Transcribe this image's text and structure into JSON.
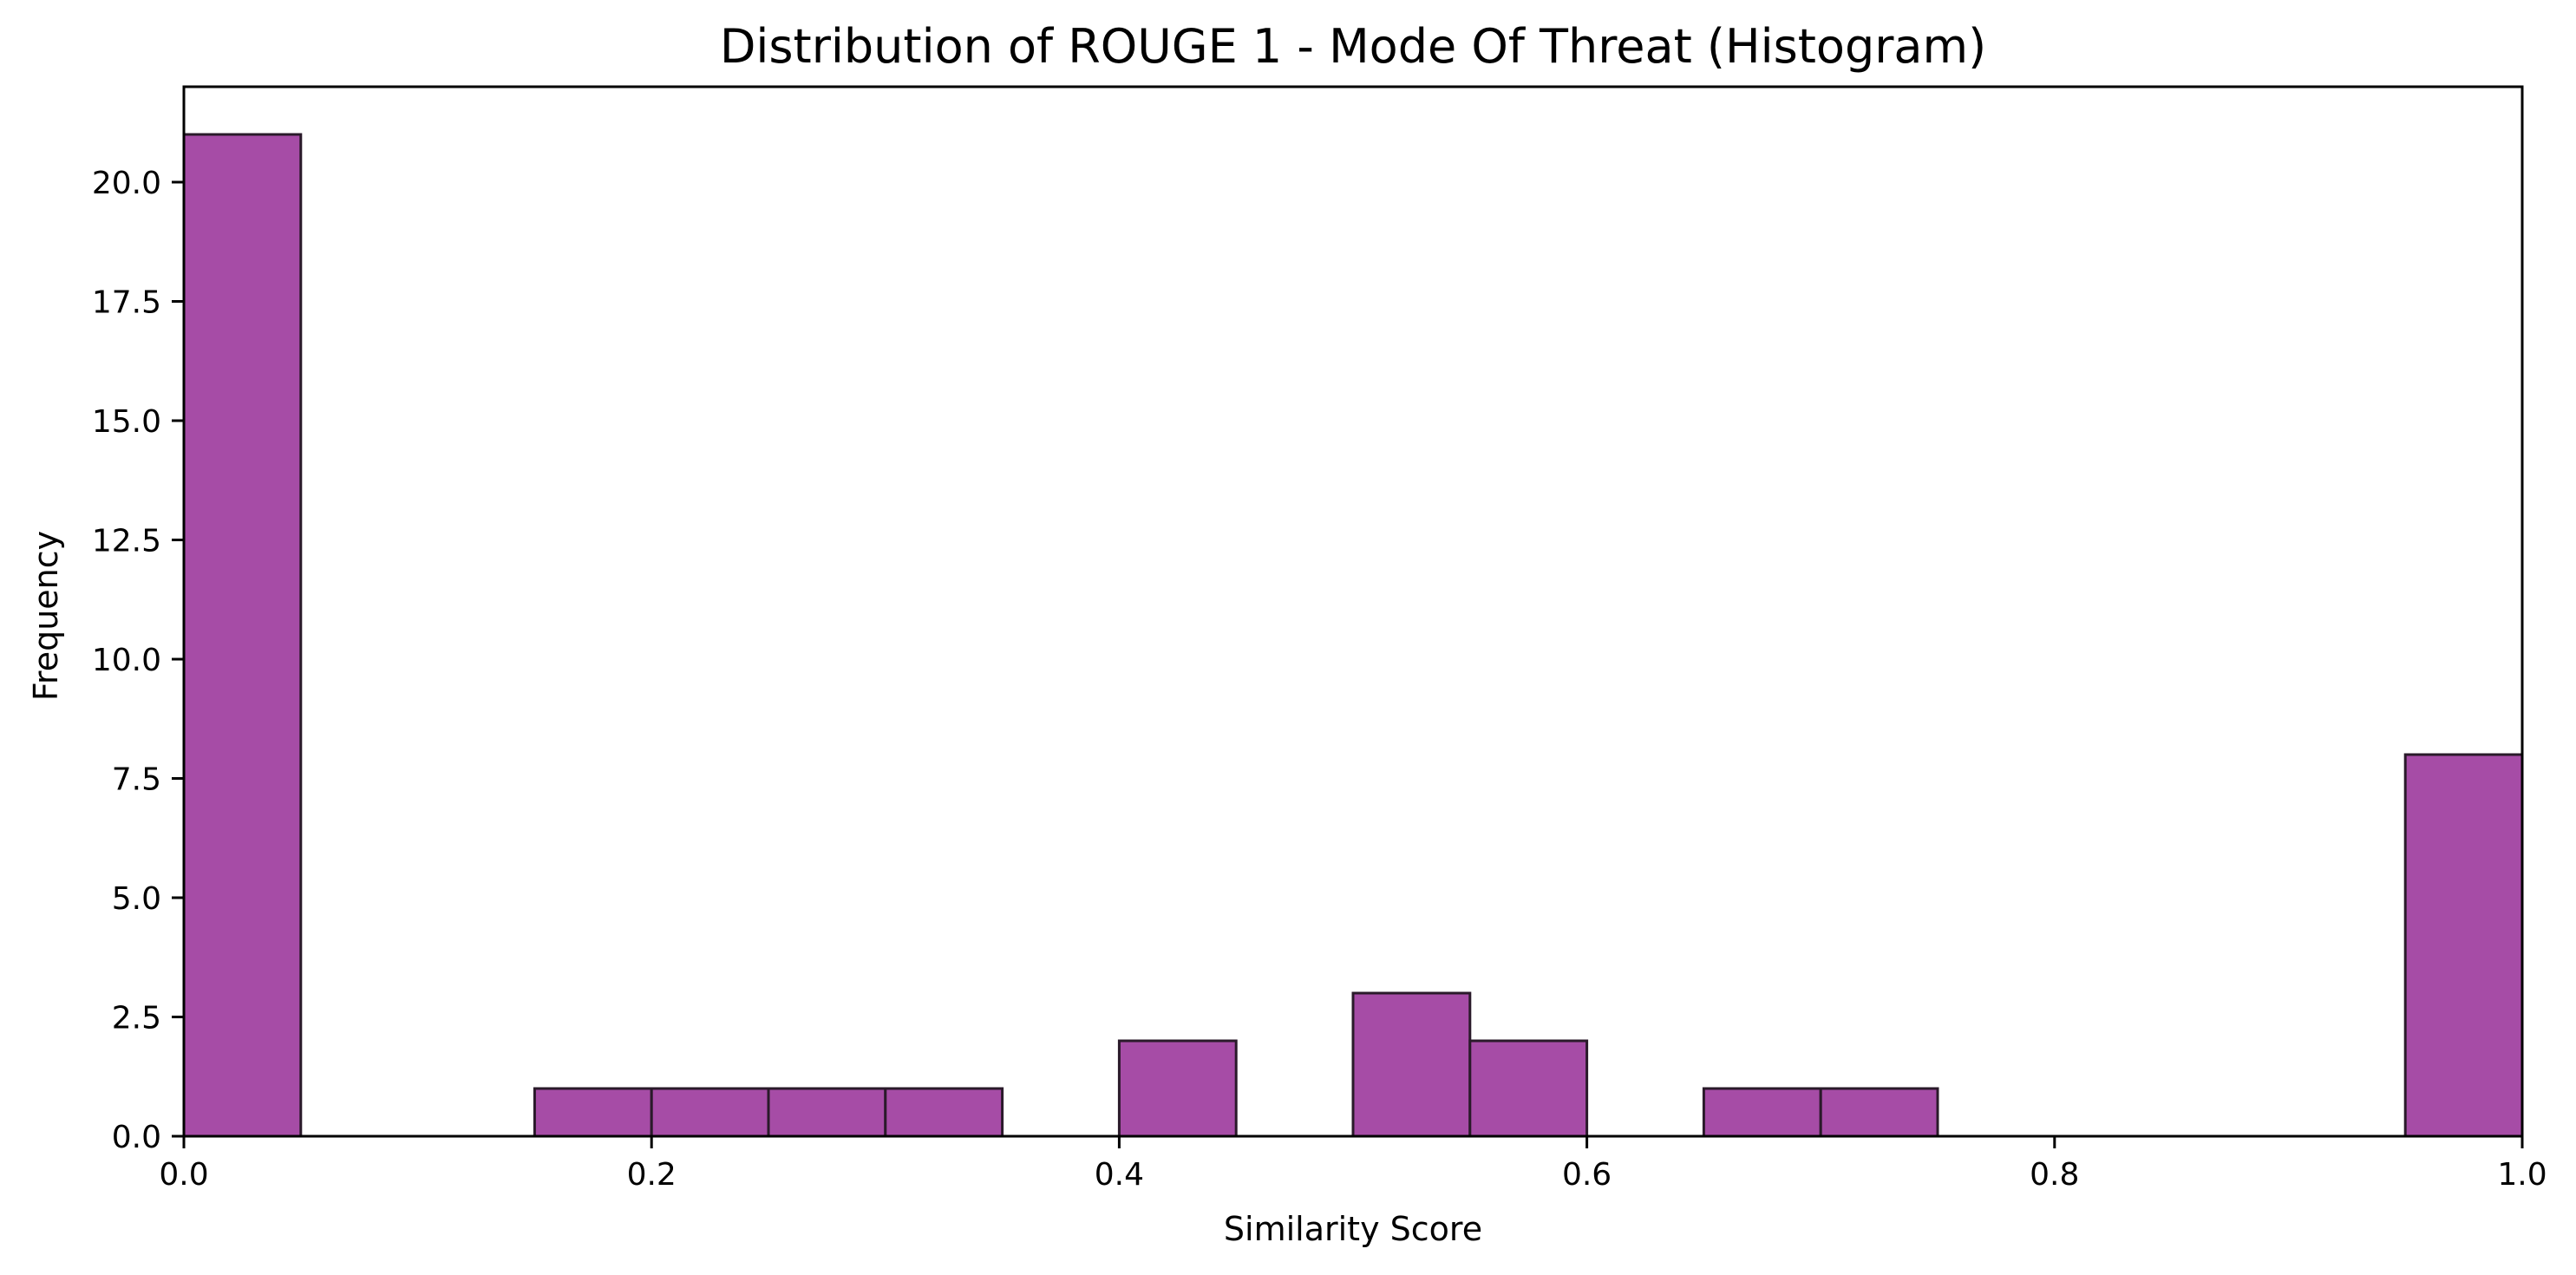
{
  "chart_data": {
    "type": "bar",
    "title": "Distribution of ROUGE 1 - Mode Of Threat (Histogram)",
    "xlabel": "Similarity Score",
    "ylabel": "Frequency",
    "xlim": [
      0.0,
      1.0
    ],
    "ylim": [
      0,
      22
    ],
    "bin_width": 0.05,
    "bins": [
      {
        "start": 0.0,
        "end": 0.05,
        "count": 21
      },
      {
        "start": 0.05,
        "end": 0.1,
        "count": 0
      },
      {
        "start": 0.1,
        "end": 0.15,
        "count": 0
      },
      {
        "start": 0.15,
        "end": 0.2,
        "count": 1
      },
      {
        "start": 0.2,
        "end": 0.25,
        "count": 1
      },
      {
        "start": 0.25,
        "end": 0.3,
        "count": 1
      },
      {
        "start": 0.3,
        "end": 0.35,
        "count": 1
      },
      {
        "start": 0.35,
        "end": 0.4,
        "count": 0
      },
      {
        "start": 0.4,
        "end": 0.45,
        "count": 2
      },
      {
        "start": 0.45,
        "end": 0.5,
        "count": 0
      },
      {
        "start": 0.5,
        "end": 0.55,
        "count": 3
      },
      {
        "start": 0.55,
        "end": 0.6,
        "count": 2
      },
      {
        "start": 0.6,
        "end": 0.65,
        "count": 0
      },
      {
        "start": 0.65,
        "end": 0.7,
        "count": 1
      },
      {
        "start": 0.7,
        "end": 0.75,
        "count": 1
      },
      {
        "start": 0.75,
        "end": 0.8,
        "count": 0
      },
      {
        "start": 0.8,
        "end": 0.85,
        "count": 0
      },
      {
        "start": 0.85,
        "end": 0.9,
        "count": 0
      },
      {
        "start": 0.9,
        "end": 0.95,
        "count": 0
      },
      {
        "start": 0.95,
        "end": 1.0,
        "count": 8
      }
    ],
    "x_ticks": [
      "0.0",
      "0.2",
      "0.4",
      "0.6",
      "0.8",
      "1.0"
    ],
    "y_ticks": [
      "0.0",
      "2.5",
      "5.0",
      "7.5",
      "10.0",
      "12.5",
      "15.0",
      "17.5",
      "20.0"
    ],
    "grid": false,
    "legend": "none",
    "colors": {
      "bar_fill": "#a64ca6",
      "bar_edge": "#2a1a2a",
      "axis": "#000000",
      "background": "#ffffff"
    }
  }
}
